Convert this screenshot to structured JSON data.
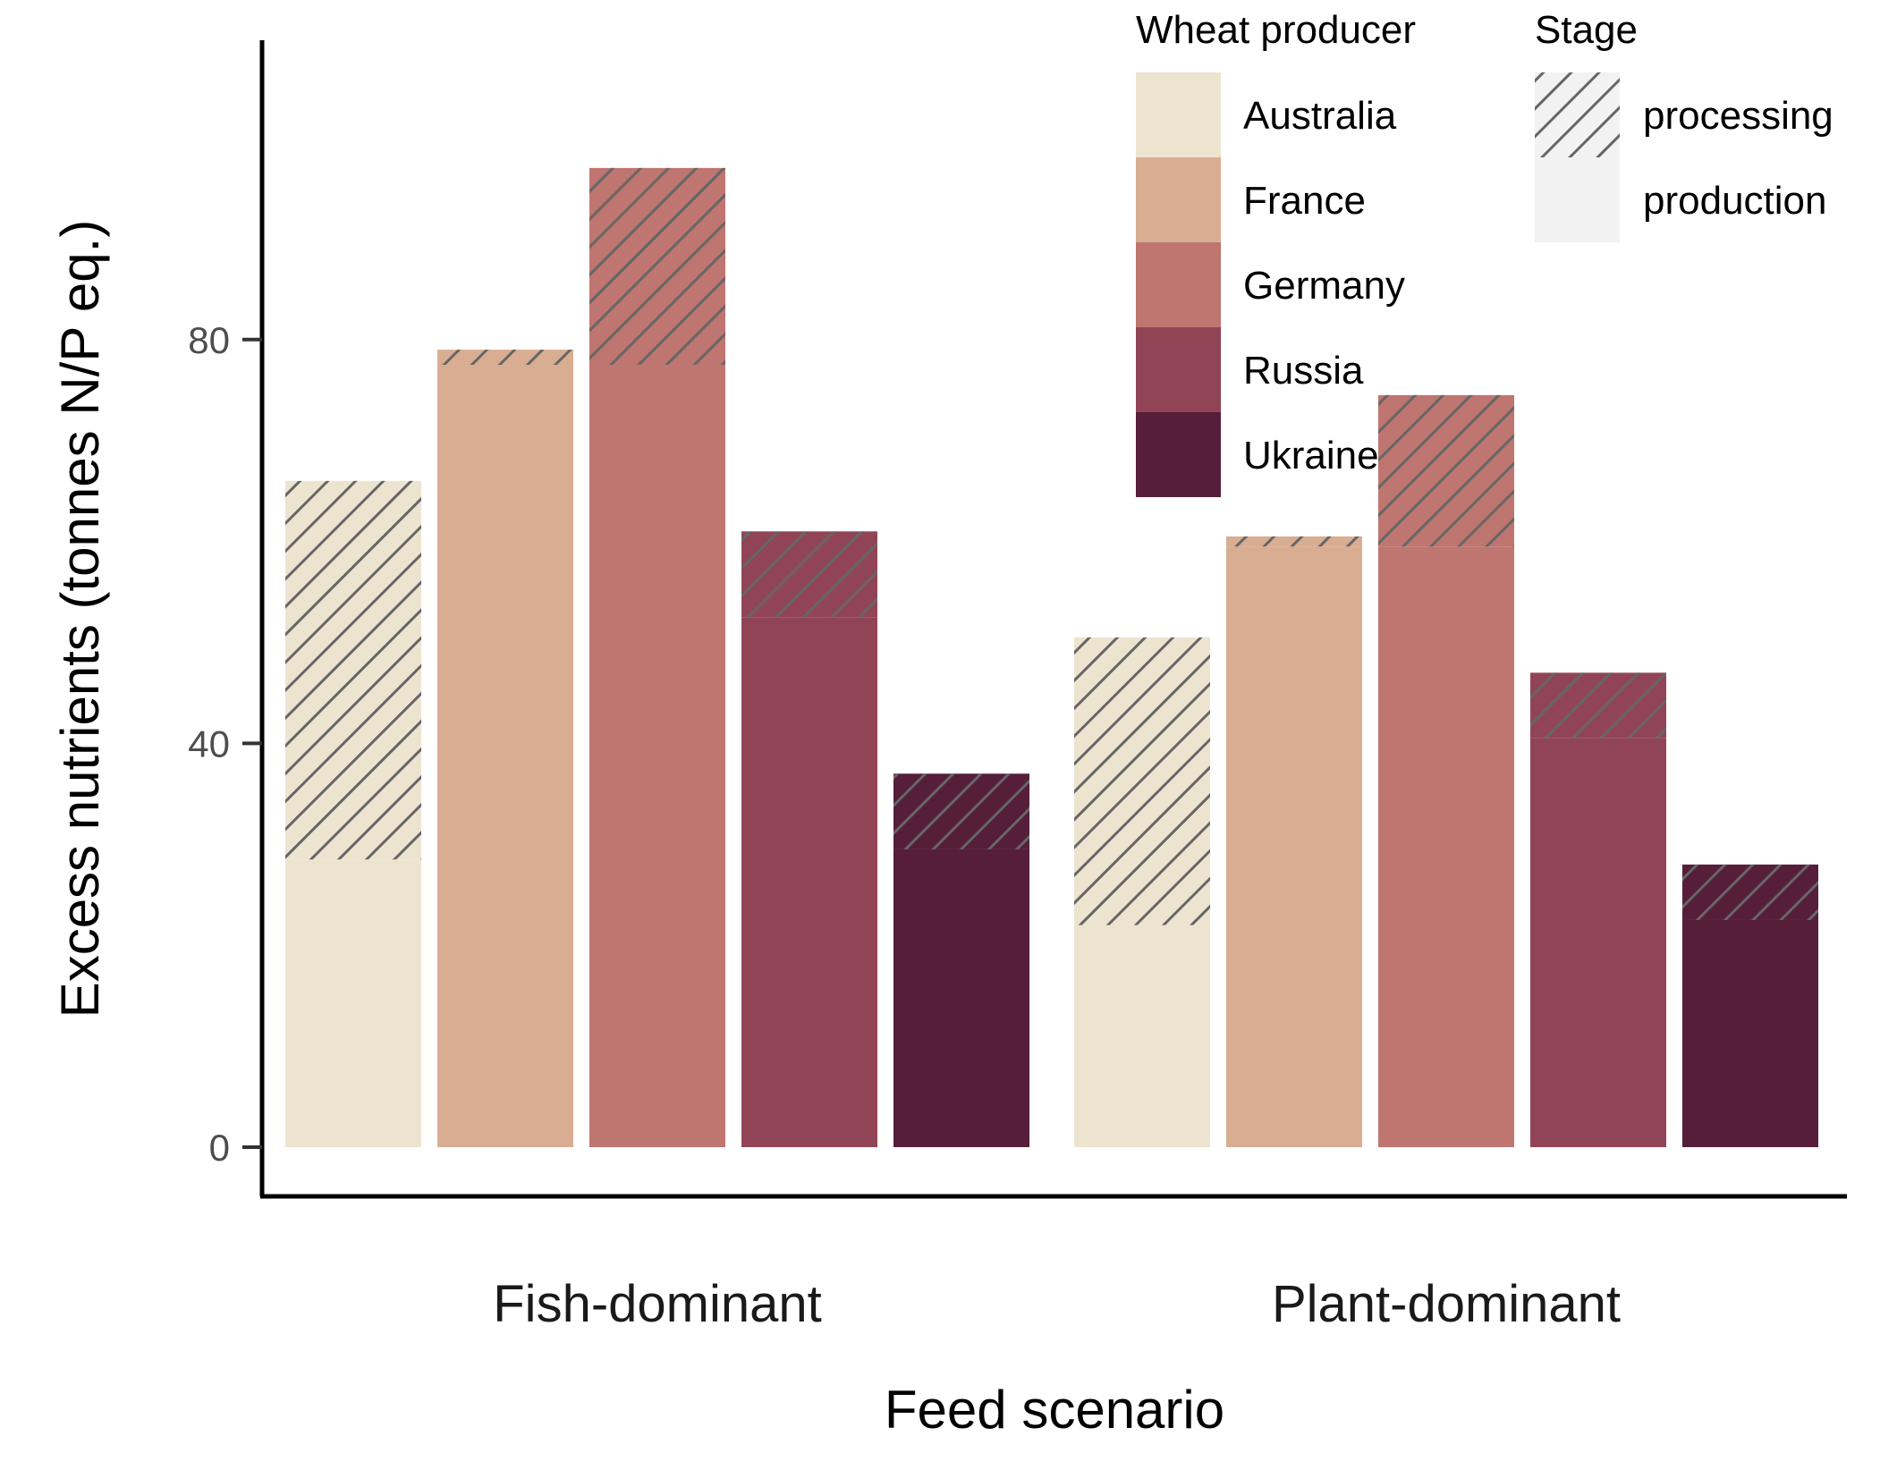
{
  "chart_data": {
    "type": "bar",
    "stacked": true,
    "xlabel": "Feed scenario",
    "ylabel": "Excess nutrients (tonnes N/P eq.)",
    "ylim": [
      -6,
      131
    ],
    "yticks": [
      0,
      40,
      80,
      120
    ],
    "categories": [
      "Fish-dominant",
      "Plant-dominant"
    ],
    "legend": {
      "placement": "top-right",
      "producer_title": "Wheat producer",
      "stage_title": "Stage"
    },
    "producers": [
      {
        "name": "Australia",
        "color": "#ede4d0"
      },
      {
        "name": "France",
        "color": "#d9ad91"
      },
      {
        "name": "Germany",
        "color": "#bf7570"
      },
      {
        "name": "Russia",
        "color": "#924457"
      },
      {
        "name": "Ukraine",
        "color": "#561e3b"
      }
    ],
    "stages": [
      {
        "name": "processing",
        "pattern": "hatched"
      },
      {
        "name": "production",
        "pattern": "solid"
      }
    ],
    "series": [
      {
        "name": "production",
        "values": [
          [
            28.5,
            77.5,
            77.5,
            52.5,
            29.5
          ],
          [
            22.0,
            59.5,
            59.5,
            40.5,
            22.5
          ]
        ]
      },
      {
        "name": "processing",
        "values": [
          [
            37.5,
            1.5,
            19.5,
            8.5,
            7.5
          ],
          [
            28.5,
            1.0,
            15.0,
            6.5,
            5.5
          ]
        ]
      }
    ],
    "hatch_color": "#666666",
    "axis_color": "#000000",
    "grid": false
  }
}
